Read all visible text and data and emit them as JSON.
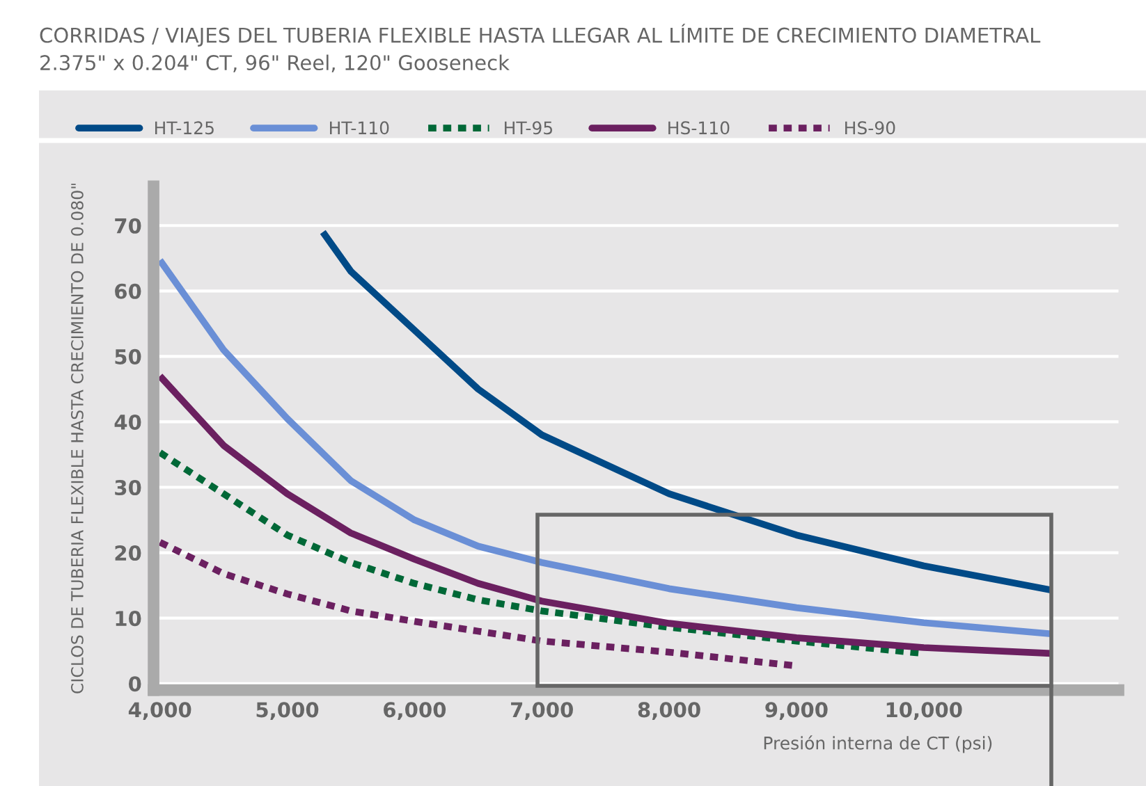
{
  "chart_data": {
    "type": "line",
    "title": "CORRIDAS / VIAJES DEL TUBERIA FLEXIBLE HASTA LLEGAR AL LÍMITE DE CRECIMIENTO DIAMETRAL",
    "subtitle": "2.375\" x 0.204\" CT, 96\" Reel, 120\" Gooseneck",
    "xlabel": "Presión interna de CT (psi)",
    "ylabel": "CICLOS DE TUBERIA FLEXIBLE HASTA CRECIMIENTO DE 0.080\"",
    "series": [
      {
        "name": "HT-125",
        "color": "#004a87",
        "line_style": "solid",
        "x": [
          5280,
          5500,
          6000,
          6500,
          7000,
          8000,
          9000,
          10000,
          11000
        ],
        "values": [
          69,
          63,
          54,
          45,
          38,
          29,
          22.7,
          18,
          14.3
        ]
      },
      {
        "name": "HT-110",
        "color": "#6a8fd6",
        "line_style": "solid",
        "x": [
          4000,
          4500,
          5000,
          5500,
          6000,
          6500,
          7000,
          8000,
          9000,
          10000,
          11000
        ],
        "values": [
          64.7,
          51,
          40.5,
          31,
          25,
          21,
          18.5,
          14.5,
          11.6,
          9.3,
          7.6
        ]
      },
      {
        "name": "HT-95",
        "color": "#006837",
        "line_style": "dashed",
        "x": [
          4000,
          4500,
          5000,
          5500,
          6000,
          6500,
          7000,
          8000,
          9000,
          10000
        ],
        "values": [
          35.3,
          29,
          22.7,
          18.5,
          15.3,
          12.8,
          11.1,
          8.6,
          6.5,
          4.6
        ]
      },
      {
        "name": "HS-110",
        "color": "#6b2060",
        "line_style": "solid",
        "x": [
          4000,
          4500,
          5000,
          5500,
          6000,
          6500,
          7000,
          8000,
          9000,
          10000,
          11000
        ],
        "values": [
          47,
          36.4,
          29,
          23,
          19,
          15.3,
          12.6,
          9.2,
          7,
          5.5,
          4.6
        ]
      },
      {
        "name": "HS-90",
        "color": "#6b2060",
        "line_style": "dashed",
        "x": [
          4000,
          4500,
          5000,
          5500,
          6000,
          6500,
          7000,
          8000,
          9000
        ],
        "values": [
          21.6,
          16.8,
          13.7,
          11.1,
          9.5,
          8,
          6.5,
          4.8,
          2.7
        ]
      }
    ],
    "xlim": [
      3950,
      11530
    ],
    "xticks": [
      {
        "value": 4000,
        "label": "4,000"
      },
      {
        "value": 5000,
        "label": "5,000"
      },
      {
        "value": 6000,
        "label": "6,000"
      },
      {
        "value": 7000,
        "label": "7,000"
      },
      {
        "value": 8000,
        "label": "8,000"
      },
      {
        "value": 9000,
        "label": "9,000"
      },
      {
        "value": 10000,
        "label": "10,000"
      }
    ],
    "ylim": [
      -1,
      76
    ],
    "yticks": [
      0,
      10,
      20,
      30,
      40,
      50,
      60,
      70
    ],
    "grid": "y",
    "legend": "top left",
    "marker": "none"
  }
}
